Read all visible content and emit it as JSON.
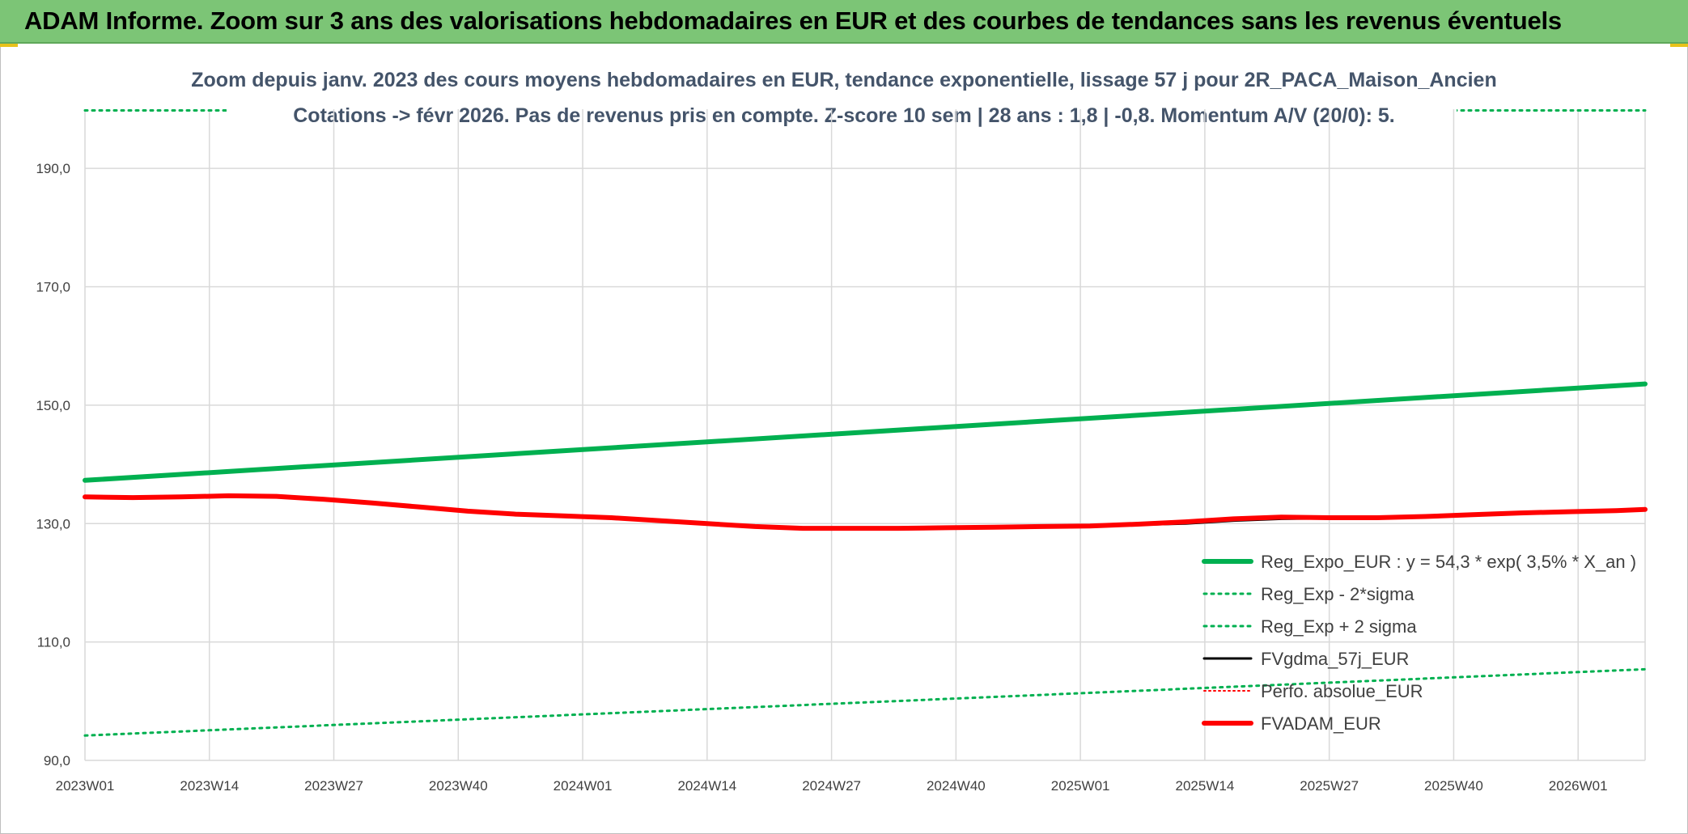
{
  "banner": {
    "title": "ADAM Informe. Zoom sur 3 ans des valorisations hebdomadaires en EUR et des courbes de tendances sans les revenus éventuels"
  },
  "chart_data": {
    "type": "line",
    "title_line1": "Zoom depuis janv. 2023 des cours moyens hebdomadaires en EUR, tendance exponentielle, lissage 57 j pour 2R_PACA_Maison_Ancien",
    "title_line2": "Cotations -> févr 2026. Pas de revenus pris en compte. Z-score 10 sem | 28 ans : 1,8 | -0,8. Momentum A/V (20/0): 5.",
    "xlabel": "",
    "ylabel": "",
    "ylim": [
      90,
      200
    ],
    "xlim": [
      0,
      163
    ],
    "y_ticks": [
      90,
      110,
      130,
      150,
      170,
      190
    ],
    "y_tick_labels": [
      "90,0",
      "110,0",
      "130,0",
      "150,0",
      "170,0",
      "190,0"
    ],
    "x_ticks": [
      0,
      13,
      26,
      39,
      52,
      65,
      78,
      91,
      104,
      117,
      130,
      143,
      156
    ],
    "x_tick_labels": [
      "2023W01",
      "2023W14",
      "2023W27",
      "2023W40",
      "2024W01",
      "2024W14",
      "2024W27",
      "2024W40",
      "2025W01",
      "2025W14",
      "2025W27",
      "2025W40",
      "2026W01"
    ],
    "legend_position": "bottom-right",
    "series": [
      {
        "name": "Reg_Expo_EUR : y = 54,3 * exp( 3,5% *  X_an )",
        "color": "#00b050",
        "style": "solid",
        "width": 6,
        "x": [
          0,
          163
        ],
        "y": [
          137.3,
          153.6
        ]
      },
      {
        "name": "Reg_Exp - 2*sigma",
        "color": "#00b050",
        "style": "dotted",
        "width": 3,
        "x": [
          0,
          163
        ],
        "y": [
          94.2,
          105.4
        ]
      },
      {
        "name": "Reg_Exp + 2 sigma",
        "color": "#00b050",
        "style": "dotted",
        "width": 3,
        "x": [
          0,
          163
        ],
        "y": [
          199.8,
          199.8
        ]
      },
      {
        "name": "FVgdma_57j_EUR",
        "color": "#000000",
        "style": "solid",
        "width": 3,
        "x": [
          0,
          5,
          10,
          15,
          20,
          25,
          30,
          35,
          40,
          45,
          50,
          55,
          60,
          65,
          70,
          75,
          80,
          85,
          90,
          95,
          100,
          105,
          110,
          115,
          120,
          125,
          130,
          135,
          140,
          145,
          150,
          155,
          160,
          163
        ],
        "y": [
          134.5,
          134.4,
          134.5,
          134.6,
          134.5,
          134.0,
          133.5,
          132.8,
          132.2,
          131.6,
          131.3,
          131.0,
          130.6,
          130.0,
          129.6,
          129.3,
          129.3,
          129.3,
          129.3,
          129.4,
          129.5,
          129.6,
          129.8,
          130.0,
          130.5,
          130.8,
          130.9,
          131.0,
          131.1,
          131.4,
          131.8,
          132.0,
          132.2,
          132.4
        ]
      },
      {
        "name": "Perfo. absolue_EUR",
        "color": "#ff0000",
        "style": "dotted",
        "width": 2,
        "x": [
          0,
          5,
          10,
          15,
          20,
          25,
          30,
          35,
          40,
          45,
          50,
          55,
          60,
          65,
          70,
          75,
          80,
          85,
          90,
          95,
          100,
          105,
          110,
          115,
          120,
          125,
          130,
          135,
          140,
          145,
          150,
          155,
          160,
          163
        ],
        "y": [
          134.5,
          134.4,
          134.5,
          134.7,
          134.6,
          134.1,
          133.5,
          132.8,
          132.1,
          131.6,
          131.3,
          131.0,
          130.5,
          130.0,
          129.5,
          129.2,
          129.2,
          129.2,
          129.3,
          129.4,
          129.5,
          129.6,
          129.9,
          130.3,
          130.8,
          131.1,
          131.0,
          131.0,
          131.2,
          131.5,
          131.8,
          132.0,
          132.2,
          132.4
        ]
      },
      {
        "name": "FVADAM_EUR",
        "color": "#ff0000",
        "style": "solid",
        "width": 6,
        "x": [
          0,
          5,
          10,
          15,
          20,
          25,
          30,
          35,
          40,
          45,
          50,
          55,
          60,
          65,
          70,
          75,
          80,
          85,
          90,
          95,
          100,
          105,
          110,
          115,
          120,
          125,
          130,
          135,
          140,
          145,
          150,
          155,
          160,
          163
        ],
        "y": [
          134.5,
          134.4,
          134.5,
          134.7,
          134.6,
          134.1,
          133.5,
          132.8,
          132.1,
          131.6,
          131.3,
          131.0,
          130.5,
          130.0,
          129.5,
          129.2,
          129.2,
          129.2,
          129.3,
          129.4,
          129.5,
          129.6,
          129.9,
          130.3,
          130.8,
          131.1,
          131.0,
          131.0,
          131.2,
          131.5,
          131.8,
          132.0,
          132.2,
          132.4
        ]
      }
    ]
  }
}
